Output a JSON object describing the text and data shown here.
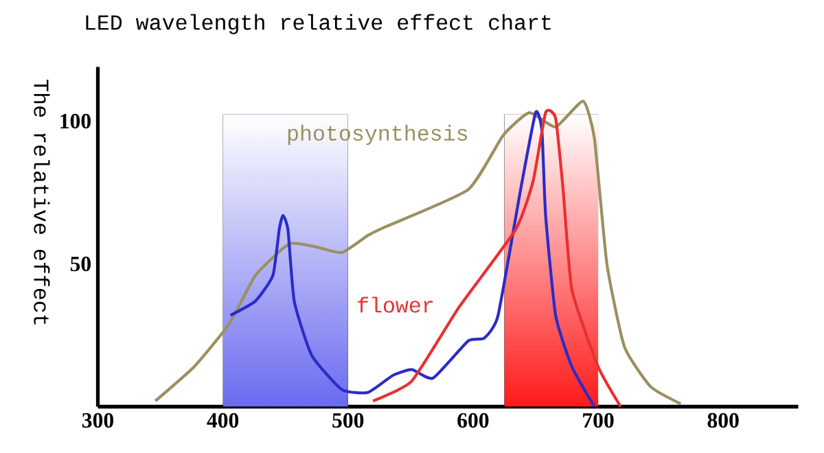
{
  "chart_data": {
    "type": "line",
    "title": "LED wavelength relative effect chart",
    "ylabel": "The relative effect",
    "xlim": [
      300,
      860
    ],
    "ylim": [
      0,
      119
    ],
    "xticks": [
      300,
      400,
      500,
      600,
      700,
      800
    ],
    "yticks": [
      50,
      100
    ],
    "grid": false,
    "legend": false,
    "marker": "none",
    "line_style": "solid",
    "bands": [
      {
        "axis": "x",
        "from": 400,
        "to": 500,
        "color": "#6a6af0"
      },
      {
        "axis": "x",
        "from": 625,
        "to": 700,
        "color": "#ff1a1a"
      }
    ],
    "series": [
      {
        "name": "photosynthesis",
        "color": "#9a9060",
        "x": [
          346,
          377,
          405,
          426,
          453,
          474,
          495,
          516,
          530,
          596,
          624,
          645,
          666,
          688,
          697,
          707,
          721,
          742,
          766
        ],
        "values": [
          2,
          14,
          29,
          46,
          57,
          56,
          54,
          60,
          63,
          76,
          95,
          103,
          98,
          107,
          94,
          50,
          21,
          7,
          1
        ]
      },
      {
        "color": "#2b2bc8",
        "x": [
          406,
          426,
          440,
          445,
          448,
          452,
          457,
          471,
          495,
          516,
          536,
          551,
          568,
          596,
          609,
          620,
          638,
          650,
          655,
          658,
          666,
          679,
          697
        ],
        "values": [
          32,
          37,
          46,
          62,
          67,
          62,
          37,
          18,
          6,
          5,
          11,
          13,
          10,
          23,
          24,
          32,
          76,
          103,
          97,
          67,
          32,
          14,
          0
        ]
      },
      {
        "name": "flower",
        "color": "#e83030",
        "x": [
          520,
          551,
          589,
          634,
          648,
          658,
          666,
          672,
          679,
          700,
          718
        ],
        "values": [
          2,
          9,
          35,
          62,
          79,
          103,
          101,
          76,
          41,
          14,
          0
        ]
      }
    ]
  }
}
